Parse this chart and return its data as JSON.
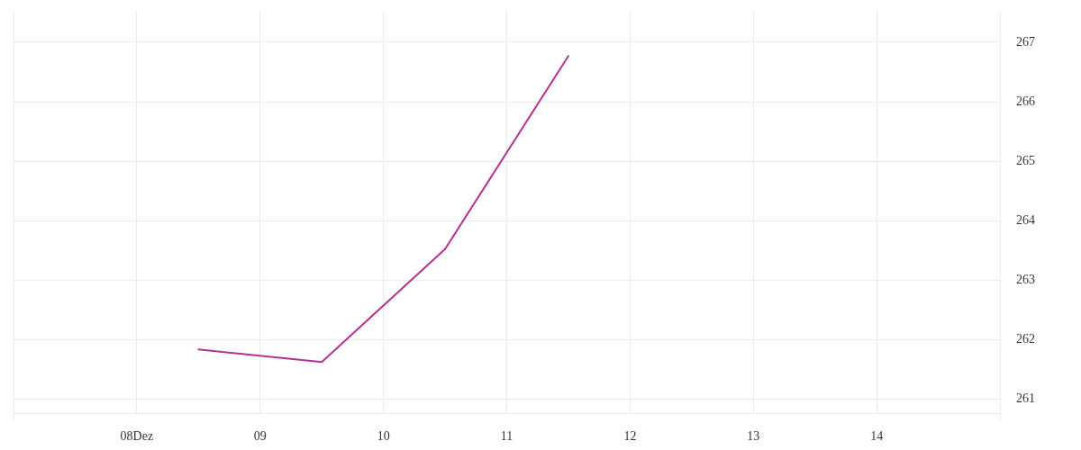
{
  "chart_data": {
    "type": "line",
    "x": [
      8.5,
      9.5,
      10.5,
      11.5
    ],
    "series": [
      {
        "color": "#b5308e",
        "values": [
          261.83,
          261.62,
          263.52,
          266.77
        ]
      }
    ],
    "xlim": [
      7,
      15
    ],
    "xticks": [
      {
        "value": 8,
        "label": "08Dez"
      },
      {
        "value": 9,
        "label": "09"
      },
      {
        "value": 10,
        "label": "10"
      },
      {
        "value": 11,
        "label": "11"
      },
      {
        "value": 12,
        "label": "12"
      },
      {
        "value": 13,
        "label": "13"
      },
      {
        "value": 14,
        "label": "14"
      }
    ],
    "ylim": [
      260.76,
      267.53
    ],
    "yticks": [
      261,
      262,
      263,
      264,
      265,
      266,
      267
    ],
    "grid": true,
    "marker": "none"
  }
}
